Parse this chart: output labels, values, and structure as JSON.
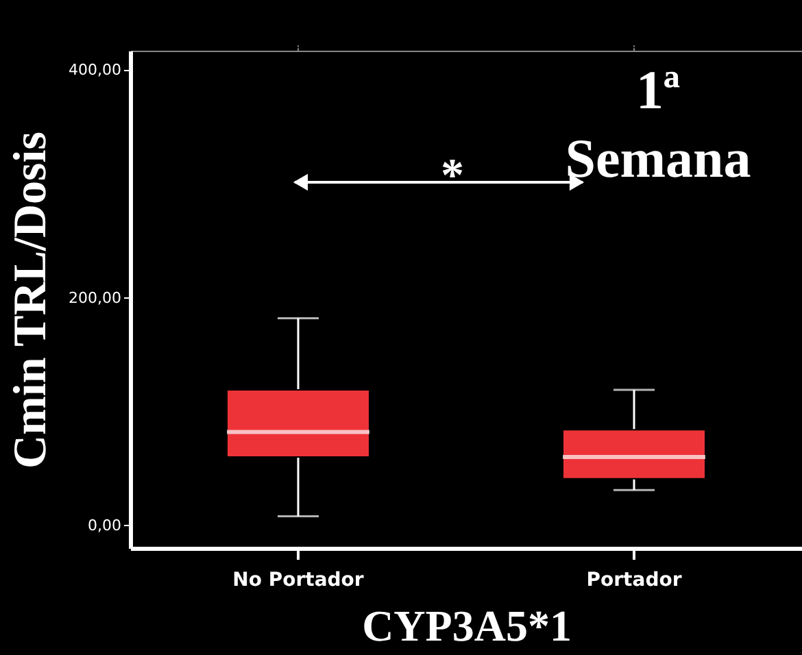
{
  "chart_data": {
    "type": "box",
    "xlabel": "CYP3A5*1",
    "ylabel": "Cmin TRL/Dosis",
    "categories": [
      "No Portador",
      "Portador"
    ],
    "series": [
      {
        "color": "#ee3338",
        "boxes": [
          {
            "low": 8,
            "q1": 60,
            "median": 82,
            "q3": 119,
            "high": 182
          },
          {
            "low": 31,
            "q1": 41,
            "median": 60,
            "q3": 84,
            "high": 119
          }
        ]
      }
    ],
    "ylim": [
      -20,
      417
    ],
    "yticks": [
      {
        "value": 0,
        "label": "0,00"
      },
      {
        "value": 200,
        "label": "200,00"
      },
      {
        "value": 400,
        "label": "400,00"
      }
    ],
    "grid": false,
    "annotations": [
      "*",
      "1ª Semana"
    ]
  }
}
